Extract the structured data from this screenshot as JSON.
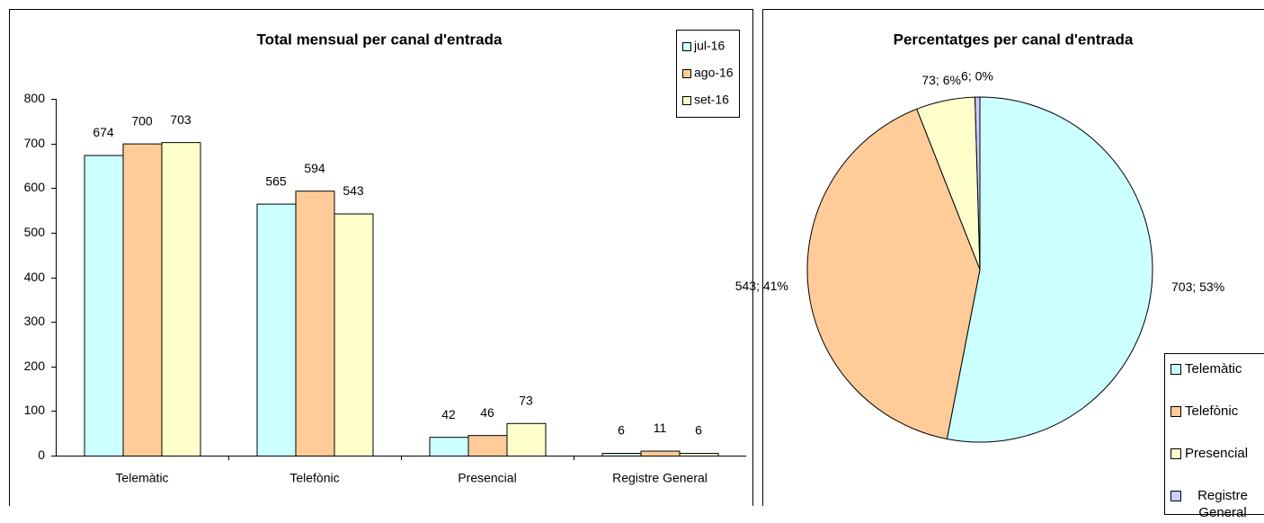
{
  "chart_data": [
    {
      "type": "bar",
      "title": "Total mensual per canal d'entrada",
      "categories": [
        "Telemàtic",
        "Telefònic",
        "Presencial",
        "Registre General"
      ],
      "series": [
        {
          "name": "jul-16",
          "color": "#ccffff",
          "values": [
            674,
            565,
            42,
            6
          ]
        },
        {
          "name": "ago-16",
          "color": "#ffcc99",
          "values": [
            700,
            594,
            46,
            11
          ]
        },
        {
          "name": "set-16",
          "color": "#ffffcc",
          "values": [
            703,
            543,
            73,
            6
          ]
        }
      ],
      "ylim": [
        0,
        800
      ],
      "yticks": [
        0,
        100,
        200,
        300,
        400,
        500,
        600,
        700,
        800
      ],
      "grid": false,
      "legend": "top-right"
    },
    {
      "type": "pie",
      "title": "Percentatges per canal d'entrada",
      "categories": [
        "Telemàtic",
        "Telefònic",
        "Presencial",
        "Registre General"
      ],
      "values": [
        703,
        543,
        73,
        6
      ],
      "value_labels": [
        "703; 53%",
        "543; 41%",
        "73; 6%",
        "6; 0%"
      ],
      "colors": [
        "#ccffff",
        "#ffcc99",
        "#ffffcc",
        "#ccccff"
      ],
      "legend": "bottom-right"
    }
  ]
}
